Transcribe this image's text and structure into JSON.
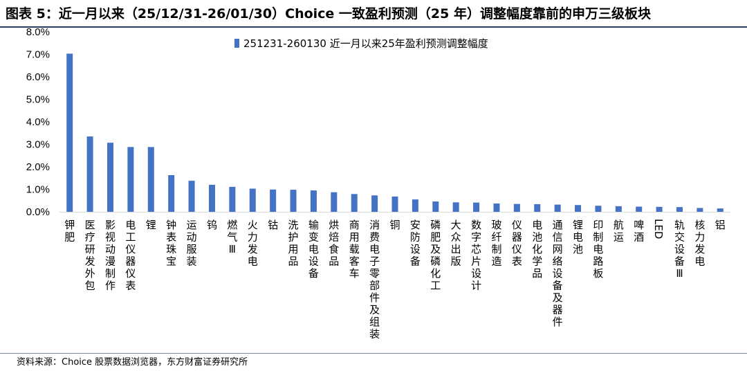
{
  "header": {
    "title": "图表 5：近一月以来（25/12/31-26/01/30）Choice 一致盈利预测（25 年）调整幅度靠前的申万三级板块"
  },
  "footer": {
    "source": "资料来源：Choice 股票数据浏览器，东方财富证券研究所"
  },
  "colors": {
    "bar": "#4472C4",
    "axis": "#d9d9d9",
    "title_rule": "#2a3a5e"
  },
  "chart_data": {
    "type": "bar",
    "title": "",
    "xlabel": "",
    "ylabel": "",
    "ylim": [
      0,
      8
    ],
    "y_tick_step": 1,
    "y_tick_format": "percent_1dp",
    "grid": false,
    "legend_position": "top-center",
    "categories": [
      "钾肥",
      "医疗研发外包",
      "影视动漫制作",
      "电工仪器仪表",
      "锂",
      "钟表珠宝",
      "运动服装",
      "钨",
      "燃气Ⅲ",
      "火力发电",
      "钴",
      "洗护用品",
      "输变电设备",
      "烘焙食品",
      "商用载客车",
      "消费电子零部件及组装",
      "铜",
      "安防设备",
      "磷肥及磷化工",
      "大众出版",
      "数字芯片设计",
      "玻纤制造",
      "仪器仪表",
      "电池化学品",
      "通信网络设备及器件",
      "锂电池",
      "印制电路板",
      "航运",
      "啤酒",
      "LED",
      "轨交设备Ⅲ",
      "核力发电",
      "铝"
    ],
    "series": [
      {
        "name": "251231-260130 近一月以来25年盈利预测调整幅度",
        "values": [
          7.03,
          3.35,
          3.07,
          2.88,
          2.88,
          1.63,
          1.38,
          1.2,
          1.11,
          1.03,
          0.99,
          0.98,
          0.95,
          0.87,
          0.79,
          0.73,
          0.68,
          0.55,
          0.46,
          0.42,
          0.41,
          0.37,
          0.35,
          0.34,
          0.32,
          0.3,
          0.27,
          0.25,
          0.23,
          0.22,
          0.21,
          0.17,
          0.15
        ]
      }
    ]
  }
}
